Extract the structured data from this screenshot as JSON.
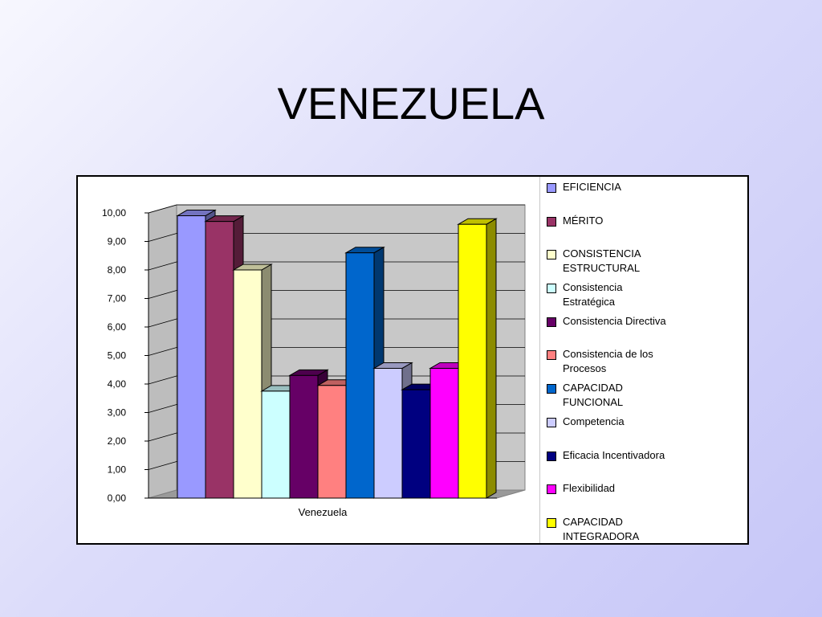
{
  "slide": {
    "title": "VENEZUELA"
  },
  "chart_data": {
    "type": "bar",
    "categories": [
      "Venezuela"
    ],
    "ylim": [
      0,
      10
    ],
    "yticks": [
      "0,00",
      "1,00",
      "2,00",
      "3,00",
      "4,00",
      "5,00",
      "6,00",
      "7,00",
      "8,00",
      "9,00",
      "10,00"
    ],
    "grid": true,
    "legend_position": "right",
    "series": [
      {
        "name": "EFICIENCIA",
        "values": [
          9.9
        ],
        "color": "#9999ff"
      },
      {
        "name": "MÉRITO",
        "values": [
          9.7
        ],
        "color": "#993366"
      },
      {
        "name": "CONSISTENCIA ESTRUCTURAL",
        "values": [
          8.0
        ],
        "color": "#ffffcc"
      },
      {
        "name": "Consistencia Estratégica",
        "values": [
          3.75
        ],
        "color": "#ccffff"
      },
      {
        "name": "Consistencia Directiva",
        "values": [
          4.3
        ],
        "color": "#660066"
      },
      {
        "name": "Consistencia de los Procesos",
        "values": [
          3.95
        ],
        "color": "#ff8080"
      },
      {
        "name": "CAPACIDAD FUNCIONAL",
        "values": [
          8.6
        ],
        "color": "#0066cc"
      },
      {
        "name": "Competencia",
        "values": [
          4.55
        ],
        "color": "#ccccff"
      },
      {
        "name": "Eficacia Incentivadora",
        "values": [
          3.8
        ],
        "color": "#000080"
      },
      {
        "name": "Flexibilidad",
        "values": [
          4.55
        ],
        "color": "#ff00ff"
      },
      {
        "name": "CAPACIDAD INTEGRADORA",
        "values": [
          9.6
        ],
        "color": "#ffff00"
      }
    ]
  },
  "legend": {
    "items": [
      {
        "label": "EFICIENCIA"
      },
      {
        "label": "MÉRITO"
      },
      {
        "label": "CONSISTENCIA\nESTRUCTURAL"
      },
      {
        "label": "Consistencia\nEstratégica"
      },
      {
        "label": "Consistencia Directiva"
      },
      {
        "label": "Consistencia de los\nProcesos"
      },
      {
        "label": "CAPACIDAD\nFUNCIONAL"
      },
      {
        "label": "Competencia"
      },
      {
        "label": "Eficacia Incentivadora"
      },
      {
        "label": "Flexibilidad"
      },
      {
        "label": "CAPACIDAD\nINTEGRADORA"
      }
    ]
  }
}
